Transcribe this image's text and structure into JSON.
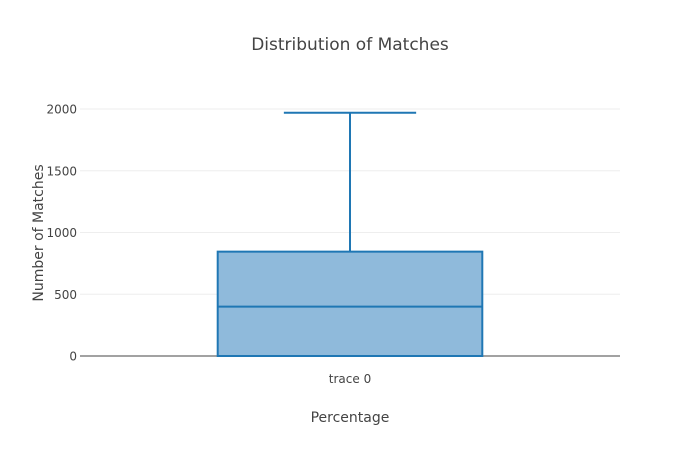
{
  "chart_data": {
    "type": "box",
    "title": "Distribution of Matches",
    "xlabel": "Percentage",
    "ylabel": "Number of Matches",
    "categories": [
      "trace 0"
    ],
    "series": [
      {
        "name": "trace 0",
        "min": 0,
        "q1": 0,
        "median": 400,
        "q3": 845,
        "max": 1970
      }
    ],
    "yticks": [
      0,
      500,
      1000,
      1500,
      2000
    ],
    "ylim": [
      -10,
      2150
    ],
    "grid": true,
    "legend": "none",
    "colors": {
      "box_fill": "#8fbadb",
      "box_stroke": "#1f77b4",
      "grid": "#eeeeee",
      "axis_line": "#444444",
      "text": "#444444",
      "title": "#444444"
    }
  }
}
